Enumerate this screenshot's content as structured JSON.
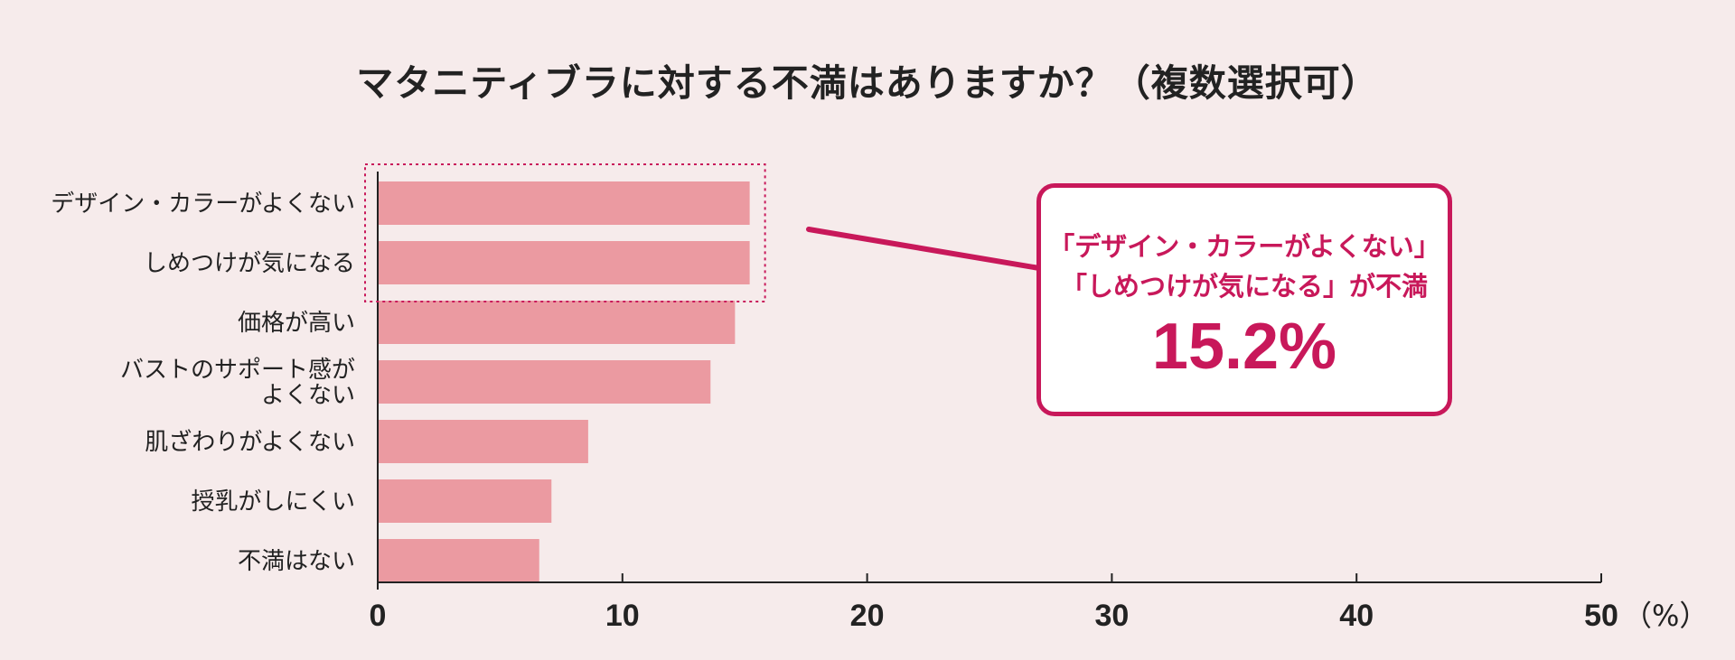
{
  "title": "マタニティブラに対する不満はありますか？（複数選択可）",
  "chart_data": {
    "type": "bar",
    "orientation": "horizontal",
    "title": "マタニティブラに対する不満はありますか？（複数選択可）",
    "categories": [
      "デザイン・カラーがよくない",
      "しめつけが気になる",
      "価格が高い",
      "バストのサポート感がよくない",
      "肌ざわりがよくない",
      "授乳がしにくい",
      "不満はない"
    ],
    "category_label_lines": [
      [
        "デザイン・カラーがよくない"
      ],
      [
        "しめつけが気になる"
      ],
      [
        "価格が高い"
      ],
      [
        "バストのサポート感が",
        "よくない"
      ],
      [
        "肌ざわりがよくない"
      ],
      [
        "授乳がしにくい"
      ],
      [
        "不満はない"
      ]
    ],
    "values": [
      15.2,
      15.2,
      14.6,
      13.6,
      8.6,
      7.1,
      6.6
    ],
    "xlim": [
      0,
      50
    ],
    "x_ticks": [
      0,
      10,
      20,
      30,
      40,
      50
    ],
    "x_tick_labels": [
      "0",
      "10",
      "20",
      "30",
      "40",
      "50"
    ],
    "x_unit_label": "（%）",
    "xlabel": "",
    "ylabel": "",
    "grid": false,
    "highlighted_categories": [
      0,
      1
    ],
    "bar_color": "#eb9aa1",
    "highlight_color": "#c8185a"
  },
  "callout": {
    "line1": "「デザイン・カラーがよくない」",
    "line2": "「しめつけが気になる」が不満",
    "value": "15.2%"
  },
  "colors": {
    "background": "#f6ebeb",
    "bar": "#eb9aa1",
    "accent": "#c8185a",
    "text": "#222222"
  }
}
